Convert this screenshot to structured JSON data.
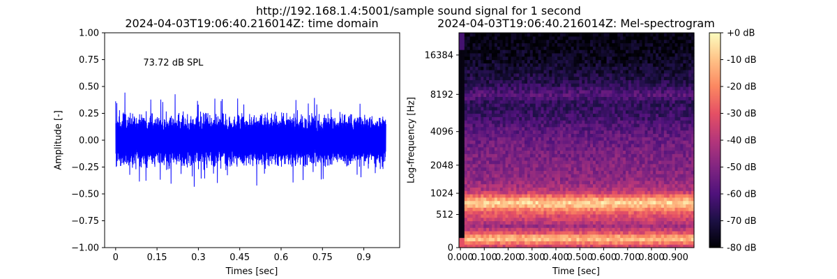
{
  "suptitle": "http://192.168.1.4:5001/sample sound signal for 1 second",
  "chart_data": [
    {
      "type": "line",
      "title": "2024-04-03T19:06:40.216014Z: time domain",
      "xlabel": "Times [sec]",
      "ylabel": "Amplitude [-]",
      "xlim": [
        -0.04,
        1.03
      ],
      "ylim": [
        -1.0,
        1.0
      ],
      "xticks": [
        0,
        0.15,
        0.3,
        0.45,
        0.6,
        0.75,
        0.9
      ],
      "xtick_labels": [
        "0",
        "0.15",
        "0.3",
        "0.45",
        "0.6",
        "0.75",
        "0.9"
      ],
      "yticks": [
        -1.0,
        -0.75,
        -0.5,
        -0.25,
        0.0,
        0.25,
        0.5,
        0.75,
        1.0
      ],
      "ytick_labels": [
        "−1.00",
        "−0.75",
        "−0.50",
        "−0.25",
        "0.00",
        "0.25",
        "0.50",
        "0.75",
        "1.00"
      ],
      "annotation": {
        "text": "73.72 dB SPL",
        "x": 0.1,
        "y": 0.72
      },
      "series": [
        {
          "color": "#0000ff",
          "signal": {
            "x_start": 0.0,
            "x_end": 0.98,
            "peak_amplitude": 0.45,
            "typical_envelope": 0.28
          }
        }
      ]
    },
    {
      "type": "heatmap",
      "title": "2024-04-03T19:06:40.216014Z: Mel-spectrogram",
      "xlabel": "Time [sec]",
      "ylabel": "Log-frequency [Hz]",
      "xlim": [
        -0.006,
        0.978
      ],
      "xticks": [
        0.0,
        0.1,
        0.2,
        0.3,
        0.4,
        0.5,
        0.6,
        0.7,
        0.8,
        0.9
      ],
      "xtick_labels": [
        "0.000",
        "0.100",
        "0.200",
        "0.300",
        "0.400",
        "0.500",
        "0.600",
        "0.700",
        "0.800",
        "0.900"
      ],
      "yscale": "mel",
      "ytick_labels": [
        "0",
        "512",
        "1024",
        "2048",
        "4096",
        "8192",
        "16384"
      ],
      "ytick_values_hz": [
        0,
        512,
        1024,
        2048,
        4096,
        8192,
        16384
      ],
      "fmax_hz": 24000,
      "colormap": "magma",
      "colorbar": {
        "ticks_db": [
          0,
          -10,
          -20,
          -30,
          -40,
          -50,
          -60,
          -70,
          -80
        ],
        "tick_labels": [
          "+0 dB",
          "-10 dB",
          "-20 dB",
          "-30 dB",
          "-40 dB",
          "-50 dB",
          "-60 dB",
          "-70 dB",
          "-80 dB"
        ],
        "range_db": [
          -80,
          0
        ]
      },
      "band_profile_db": [
        {
          "hz": 0,
          "db": -38
        },
        {
          "hz": 60,
          "db": -22
        },
        {
          "hz": 120,
          "db": -8
        },
        {
          "hz": 200,
          "db": -30
        },
        {
          "hz": 300,
          "db": -45
        },
        {
          "hz": 420,
          "db": -35
        },
        {
          "hz": 550,
          "db": -28
        },
        {
          "hz": 650,
          "db": -18
        },
        {
          "hz": 760,
          "db": -5
        },
        {
          "hz": 850,
          "db": -12
        },
        {
          "hz": 960,
          "db": -25
        },
        {
          "hz": 1100,
          "db": -40
        },
        {
          "hz": 1500,
          "db": -48
        },
        {
          "hz": 2048,
          "db": -50
        },
        {
          "hz": 3000,
          "db": -53
        },
        {
          "hz": 4096,
          "db": -57
        },
        {
          "hz": 5500,
          "db": -64
        },
        {
          "hz": 7000,
          "db": -66
        },
        {
          "hz": 8192,
          "db": -58
        },
        {
          "hz": 10000,
          "db": -68
        },
        {
          "hz": 13000,
          "db": -73
        },
        {
          "hz": 16384,
          "db": -76
        },
        {
          "hz": 24000,
          "db": -79
        }
      ]
    }
  ]
}
